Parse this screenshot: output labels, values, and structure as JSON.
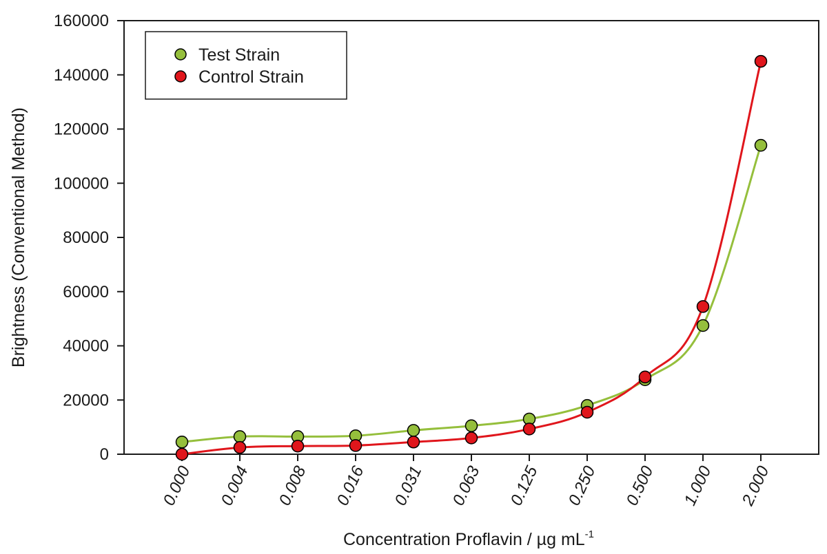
{
  "chart_data": {
    "type": "line",
    "title": "",
    "xlabel": "Concentration Proflavin / µg mL",
    "xlabel_superscript": "-1",
    "ylabel": "Brightness (Conventional Method)",
    "categories": [
      "0.000",
      "0.004",
      "0.008",
      "0.016",
      "0.031",
      "0.063",
      "0.125",
      "0.250",
      "0.500",
      "1.000",
      "2.000"
    ],
    "ylim": [
      0,
      160000
    ],
    "yticks": [
      0,
      20000,
      40000,
      60000,
      80000,
      100000,
      120000,
      140000,
      160000
    ],
    "ytick_labels": [
      "0",
      "20000",
      "40000",
      "60000",
      "80000",
      "100000",
      "120000",
      "140000",
      "160000"
    ],
    "grid": false,
    "legend_position": "top-left",
    "series": [
      {
        "name": "Test Strain",
        "color": "#95bf3c",
        "marker": "circle",
        "values": [
          4500,
          6500,
          6500,
          6800,
          8800,
          10500,
          13000,
          18000,
          27500,
          47500,
          114000
        ]
      },
      {
        "name": "Control Strain",
        "color": "#e0161c",
        "marker": "circle",
        "values": [
          0,
          2500,
          3000,
          3200,
          4500,
          6000,
          9300,
          15500,
          28500,
          54500,
          145000
        ]
      }
    ]
  }
}
